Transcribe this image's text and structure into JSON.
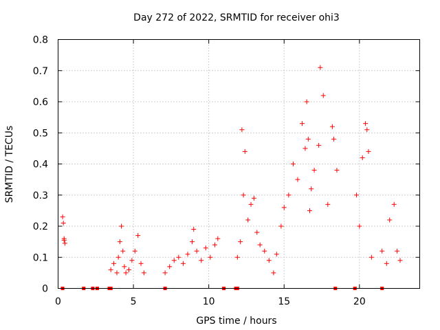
{
  "chart_data": {
    "type": "scatter",
    "title": "Day 272 of 2022, SRMTID for receiver ohi3",
    "xlabel": "GPS time / hours",
    "ylabel": "SRMTID / TECUs",
    "xlim": [
      0,
      24
    ],
    "ylim": [
      0,
      0.8
    ],
    "x_ticks": [
      0,
      5,
      10,
      15,
      20
    ],
    "x_tick_labels": [
      "0",
      "5",
      "10",
      "15",
      "20"
    ],
    "y_ticks": [
      0,
      0.1,
      0.2,
      0.3,
      0.4,
      0.5,
      0.6,
      0.7,
      0.8
    ],
    "y_tick_labels": [
      "0",
      "0.1",
      "0.2",
      "0.3",
      "0.4",
      "0.5",
      "0.6",
      "0.7",
      "0.8"
    ],
    "grid": true,
    "marker": "+",
    "color": "#ff0000",
    "series": [
      {
        "name": "SRMTID",
        "x": [
          0.3,
          0.35,
          0.4,
          0.45,
          0.4,
          3.5,
          3.7,
          3.9,
          4.0,
          4.1,
          4.2,
          4.3,
          4.4,
          4.5,
          4.7,
          4.9,
          5.1,
          5.3,
          5.5,
          5.7,
          7.1,
          7.4,
          7.7,
          8.0,
          8.3,
          8.6,
          8.9,
          9.0,
          9.2,
          9.5,
          9.8,
          10.1,
          10.4,
          10.6,
          11.9,
          12.1,
          12.2,
          12.3,
          12.4,
          12.6,
          12.8,
          13.0,
          13.2,
          13.4,
          13.7,
          14.0,
          14.3,
          14.5,
          14.8,
          15.0,
          15.3,
          15.6,
          15.9,
          16.2,
          16.4,
          16.5,
          16.6,
          16.7,
          16.8,
          17.0,
          17.3,
          17.4,
          17.6,
          17.9,
          18.2,
          18.3,
          18.5,
          19.8,
          20.0,
          20.2,
          20.4,
          20.5,
          20.6,
          20.8,
          21.5,
          21.8,
          22.0,
          22.3,
          22.5,
          22.7
        ],
        "y": [
          0.23,
          0.21,
          0.16,
          0.145,
          0.155,
          0.06,
          0.08,
          0.05,
          0.1,
          0.15,
          0.2,
          0.12,
          0.07,
          0.05,
          0.06,
          0.09,
          0.12,
          0.17,
          0.08,
          0.05,
          0.05,
          0.07,
          0.09,
          0.1,
          0.08,
          0.11,
          0.15,
          0.19,
          0.12,
          0.09,
          0.13,
          0.1,
          0.14,
          0.16,
          0.1,
          0.15,
          0.51,
          0.3,
          0.44,
          0.22,
          0.27,
          0.29,
          0.18,
          0.14,
          0.12,
          0.09,
          0.05,
          0.11,
          0.2,
          0.26,
          0.3,
          0.4,
          0.35,
          0.53,
          0.45,
          0.6,
          0.48,
          0.25,
          0.32,
          0.38,
          0.46,
          0.71,
          0.62,
          0.27,
          0.52,
          0.48,
          0.38,
          0.3,
          0.2,
          0.42,
          0.53,
          0.51,
          0.44,
          0.1,
          0.12,
          0.08,
          0.22,
          0.27,
          0.12,
          0.09
        ]
      }
    ],
    "zero_markers_x": [
      0.3,
      1.7,
      2.3,
      2.6,
      3.4,
      3.5,
      7.1,
      11.0,
      11.8,
      11.9,
      18.4,
      19.7,
      21.5
    ]
  }
}
